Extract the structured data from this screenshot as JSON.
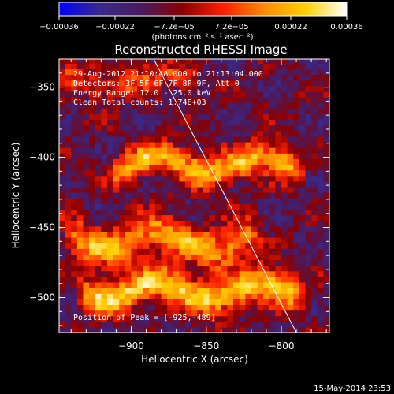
{
  "chart_data": {
    "type": "heatmap",
    "title": "Reconstructed RHESSI Image",
    "xlabel": "Heliocentric X (arcsec)",
    "ylabel": "Heliocentric Y (arcsec)",
    "xlim": [
      -948,
      -768
    ],
    "ylim": [
      -525,
      -330
    ],
    "x_ticks": [
      -900,
      -850,
      -800
    ],
    "x_tick_labels": [
      "−900",
      "−850",
      "−800"
    ],
    "y_ticks": [
      -350,
      -400,
      -450,
      -500
    ],
    "y_tick_labels": [
      "−350",
      "−400",
      "−450",
      "−500"
    ],
    "colorbar": {
      "ticks": [
        -0.00036,
        -0.00022,
        -7.2e-05,
        7.2e-05,
        0.00022,
        0.00036
      ],
      "tick_labels": [
        "−0.00036",
        "−0.00022",
        "−7.2e−05",
        "7.2e−05",
        "0.00022",
        "0.00036"
      ],
      "units": "(photons cm⁻² s⁻¹ asec⁻²)",
      "colormap_stops": [
        "#0000ff",
        "#3a2a8a",
        "#4a1a60",
        "#8a0000",
        "#ff2000",
        "#ff8c00",
        "#ffd000",
        "#ffffff"
      ]
    },
    "annotations": [
      "29-Aug-2012 21:10:48.000 to 21:13:04.000",
      "Detectors: 3F 5F 6F 7F 8F 9F, Att 0",
      "Energy Range: 12.0 - 25.0 keV",
      "Clean    Total counts: 1.74E+03"
    ],
    "peak_label": "Position of Peak = [-925,-489]",
    "peak": [
      -925,
      -489
    ],
    "limb_line": [
      [
        -885,
        -330
      ],
      [
        -790,
        -525
      ]
    ],
    "bands": [
      {
        "x0": -948,
        "x1": -860,
        "y": -345,
        "sigma": 7,
        "amp": 0.00018
      },
      {
        "x0": -910,
        "x1": -790,
        "y": -405,
        "sigma": 8,
        "amp": 0.00033
      },
      {
        "x0": -940,
        "x1": -820,
        "y": -460,
        "sigma": 10,
        "amp": 0.0003
      },
      {
        "x0": -930,
        "x1": -790,
        "y": -495,
        "sigma": 9,
        "amp": 0.00036
      }
    ]
  },
  "footer": {
    "timestamp": "15-May-2014 23:53"
  }
}
